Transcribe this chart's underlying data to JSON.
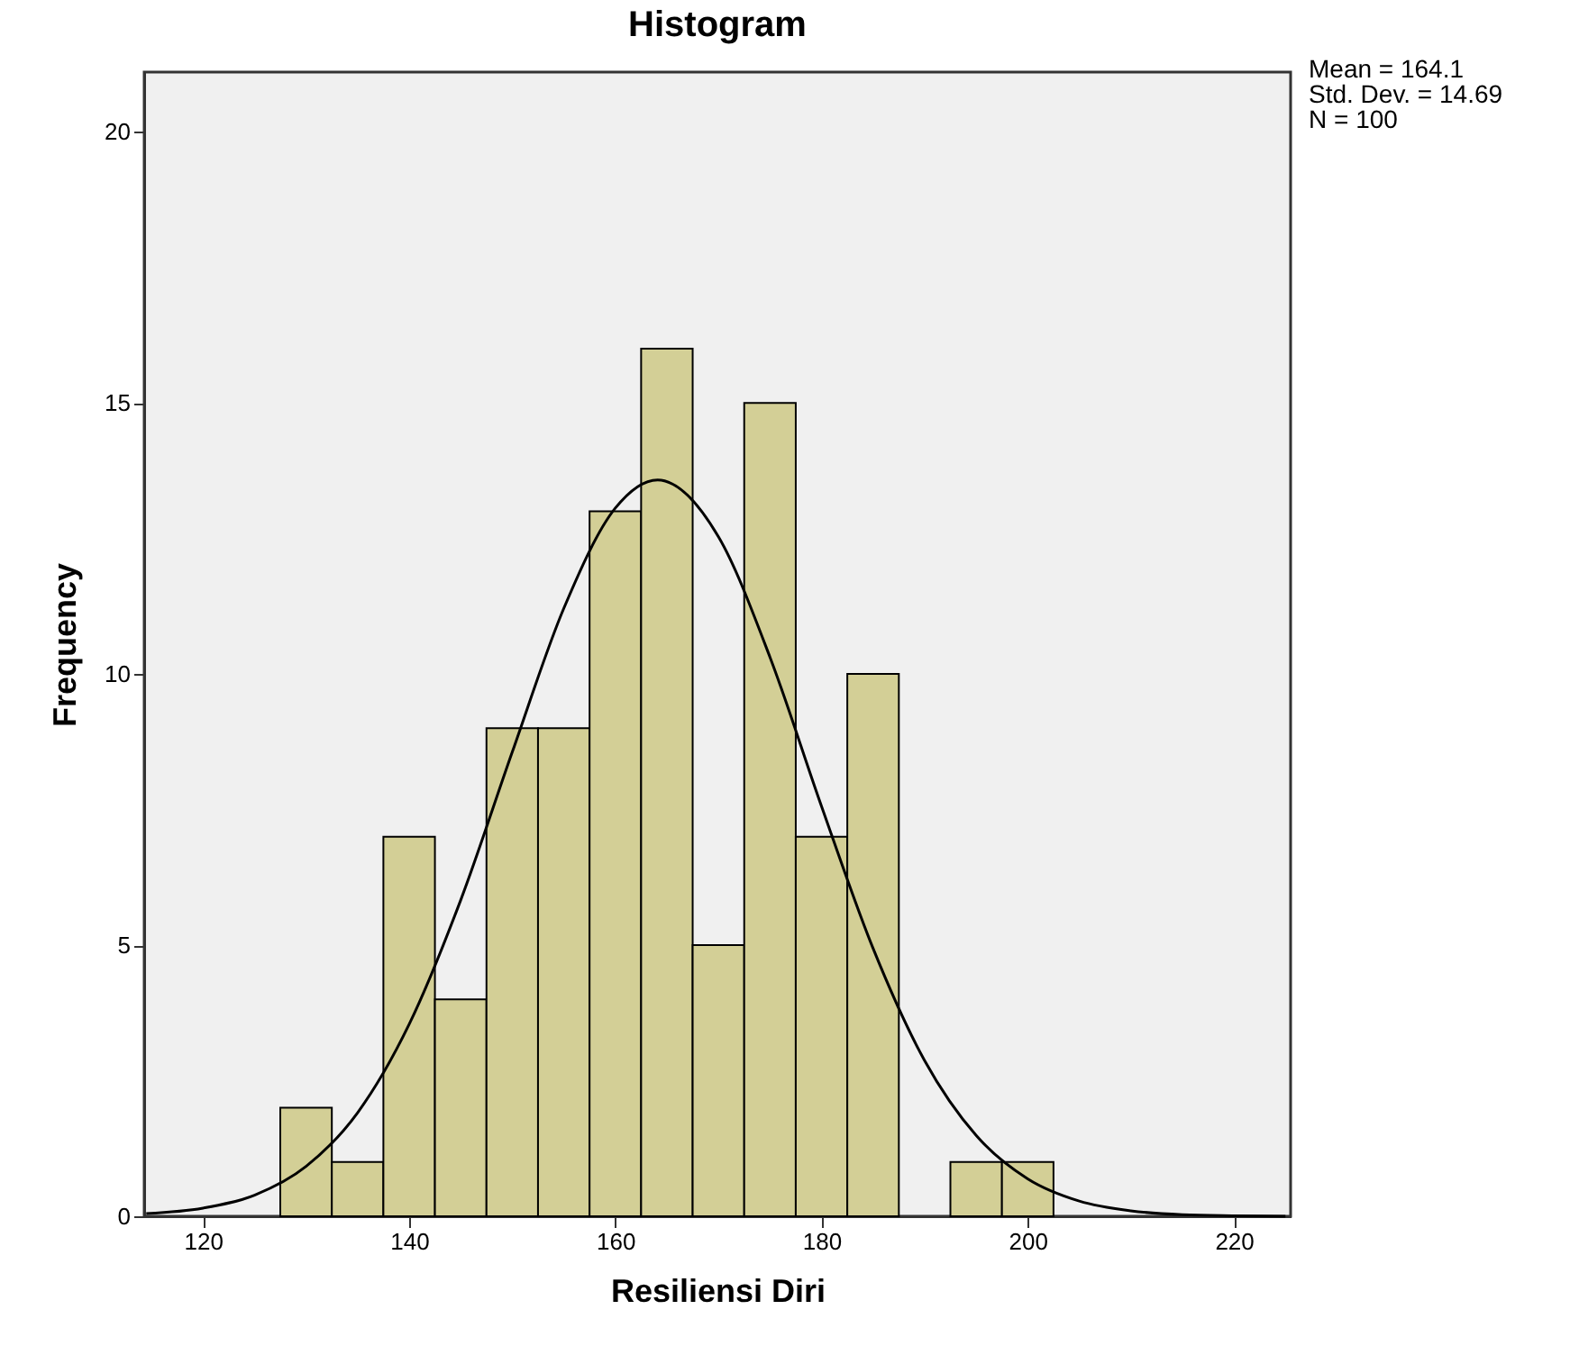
{
  "chart_data": {
    "type": "histogram",
    "title": "Histogram",
    "xlabel": "Resiliensi Diri",
    "ylabel": "Frequency",
    "bins": [
      127.5,
      132.5,
      137.5,
      142.5,
      147.5,
      152.5,
      157.5,
      162.5,
      167.5,
      172.5,
      177.5,
      182.5,
      187.5,
      192.5,
      197.5,
      202.5
    ],
    "values": [
      2,
      1,
      7,
      4,
      9,
      9,
      13,
      16,
      5,
      15,
      7,
      10,
      0,
      1,
      1
    ],
    "color": "#d3cf96",
    "series": [
      {
        "type": "line",
        "color": "#000000",
        "x": [
          114.5,
          120,
          125,
          130,
          135,
          140,
          145,
          150,
          155,
          160,
          164.1,
          170,
          175,
          180,
          185,
          190,
          195,
          200,
          205,
          210,
          215,
          220,
          225
        ],
        "values": [
          0.05,
          0.15,
          0.39,
          0.92,
          1.91,
          3.54,
          5.83,
          8.56,
          11.21,
          13.06,
          13.58,
          12.53,
          10.31,
          7.56,
          4.94,
          2.87,
          1.49,
          0.69,
          0.28,
          0.1,
          0.03,
          0.01,
          0.0
        ]
      }
    ],
    "xlim": [
      114.3,
      225.5
    ],
    "xticks": [
      120,
      140,
      160,
      180,
      200,
      220
    ],
    "ylim": [
      0,
      21.1
    ],
    "yticks": [
      0,
      5,
      10,
      15,
      20
    ],
    "grid": false,
    "legend": false,
    "annotations": [
      "Mean = 164.1",
      "Std. Dev. = 14.69",
      "N = 100"
    ]
  }
}
